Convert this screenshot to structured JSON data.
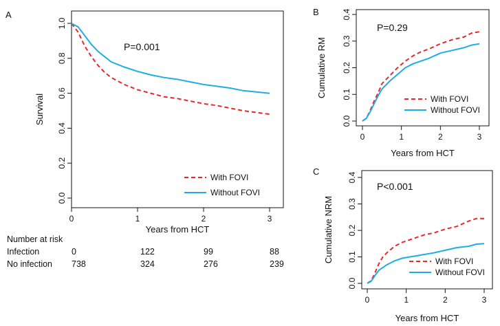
{
  "colors": {
    "with": "#e8262b",
    "without": "#1aaee5"
  },
  "chart_data": [
    {
      "panel": "A",
      "type": "line",
      "pvalue": "P=0.001",
      "xlabel": "Years from HCT",
      "ylabel": "Survival",
      "xlim": [
        0,
        3
      ],
      "ylim": [
        0,
        1
      ],
      "xticks": [
        "0",
        "1",
        "2",
        "3"
      ],
      "yticks": [
        "0.0",
        "0.2",
        "0.4",
        "0.6",
        "0.8",
        "1.0"
      ],
      "legend_position": "bottom-right",
      "series": [
        {
          "name": "With FOVI",
          "style": "dashed",
          "x": [
            0,
            0.1,
            0.2,
            0.3,
            0.4,
            0.5,
            0.6,
            0.8,
            1.0,
            1.2,
            1.4,
            1.6,
            1.8,
            2.0,
            2.2,
            2.4,
            2.6,
            2.8,
            3.0
          ],
          "y": [
            1.0,
            0.95,
            0.87,
            0.81,
            0.76,
            0.72,
            0.69,
            0.65,
            0.62,
            0.6,
            0.58,
            0.57,
            0.555,
            0.54,
            0.53,
            0.515,
            0.5,
            0.49,
            0.48
          ]
        },
        {
          "name": "Without FOVI",
          "style": "solid",
          "x": [
            0,
            0.1,
            0.2,
            0.3,
            0.4,
            0.5,
            0.6,
            0.8,
            1.0,
            1.2,
            1.4,
            1.6,
            1.8,
            2.0,
            2.2,
            2.4,
            2.6,
            2.8,
            3.0
          ],
          "y": [
            1.0,
            0.98,
            0.93,
            0.88,
            0.84,
            0.81,
            0.78,
            0.75,
            0.725,
            0.705,
            0.69,
            0.68,
            0.665,
            0.65,
            0.64,
            0.63,
            0.615,
            0.607,
            0.6
          ]
        }
      ]
    },
    {
      "panel": "B",
      "type": "line",
      "pvalue": "P=0.29",
      "xlabel": "Years from HCT",
      "ylabel": "Cumulative RM",
      "xlim": [
        0,
        3
      ],
      "ylim": [
        0,
        0.4
      ],
      "xticks": [
        "0",
        "1",
        "2",
        "3"
      ],
      "yticks": [
        "0.0",
        "0.1",
        "0.2",
        "0.3",
        "0.4"
      ],
      "legend_position": "bottom-right",
      "series": [
        {
          "name": "With FOVI",
          "style": "dashed",
          "x": [
            0,
            0.1,
            0.2,
            0.3,
            0.4,
            0.5,
            0.7,
            0.9,
            1.1,
            1.3,
            1.5,
            1.7,
            2.0,
            2.3,
            2.6,
            2.8,
            3.0
          ],
          "y": [
            0,
            0.01,
            0.04,
            0.075,
            0.105,
            0.14,
            0.17,
            0.2,
            0.225,
            0.245,
            0.26,
            0.27,
            0.29,
            0.305,
            0.315,
            0.33,
            0.335
          ]
        },
        {
          "name": "Without FOVI",
          "style": "solid",
          "x": [
            0,
            0.1,
            0.2,
            0.3,
            0.4,
            0.5,
            0.7,
            0.9,
            1.1,
            1.3,
            1.5,
            1.7,
            2.0,
            2.3,
            2.6,
            2.8,
            3.0
          ],
          "y": [
            0,
            0.01,
            0.035,
            0.065,
            0.095,
            0.12,
            0.15,
            0.175,
            0.2,
            0.215,
            0.225,
            0.235,
            0.255,
            0.265,
            0.275,
            0.285,
            0.29
          ]
        }
      ]
    },
    {
      "panel": "C",
      "type": "line",
      "pvalue": "P<0.001",
      "xlabel": "Years from HCT",
      "ylabel": "Cumulative NRM",
      "xlim": [
        0,
        3
      ],
      "ylim": [
        0,
        0.4
      ],
      "xticks": [
        "0",
        "1",
        "2",
        "3"
      ],
      "yticks": [
        "0.0",
        "0.1",
        "0.2",
        "0.3",
        "0.4"
      ],
      "legend_position": "bottom-right",
      "series": [
        {
          "name": "With FOVI",
          "style": "dashed",
          "x": [
            0,
            0.1,
            0.2,
            0.3,
            0.4,
            0.5,
            0.7,
            0.9,
            1.1,
            1.3,
            1.5,
            1.7,
            2.0,
            2.3,
            2.6,
            2.8,
            3.0
          ],
          "y": [
            0,
            0.01,
            0.04,
            0.075,
            0.1,
            0.115,
            0.14,
            0.155,
            0.165,
            0.175,
            0.185,
            0.19,
            0.205,
            0.215,
            0.235,
            0.245,
            0.245
          ]
        },
        {
          "name": "Without FOVI",
          "style": "solid",
          "x": [
            0,
            0.1,
            0.2,
            0.3,
            0.4,
            0.5,
            0.7,
            0.9,
            1.1,
            1.3,
            1.5,
            1.7,
            2.0,
            2.3,
            2.6,
            2.8,
            3.0
          ],
          "y": [
            0,
            0.008,
            0.03,
            0.05,
            0.06,
            0.07,
            0.085,
            0.095,
            0.1,
            0.105,
            0.11,
            0.115,
            0.125,
            0.135,
            0.14,
            0.148,
            0.15
          ]
        }
      ]
    }
  ],
  "risk_table": {
    "title": "Number at risk",
    "rows": [
      {
        "label": "Infection",
        "values": [
          "0",
          "122",
          "99",
          "88"
        ]
      },
      {
        "label": "No infection",
        "values": [
          "738",
          "324",
          "276",
          "239"
        ]
      }
    ]
  }
}
